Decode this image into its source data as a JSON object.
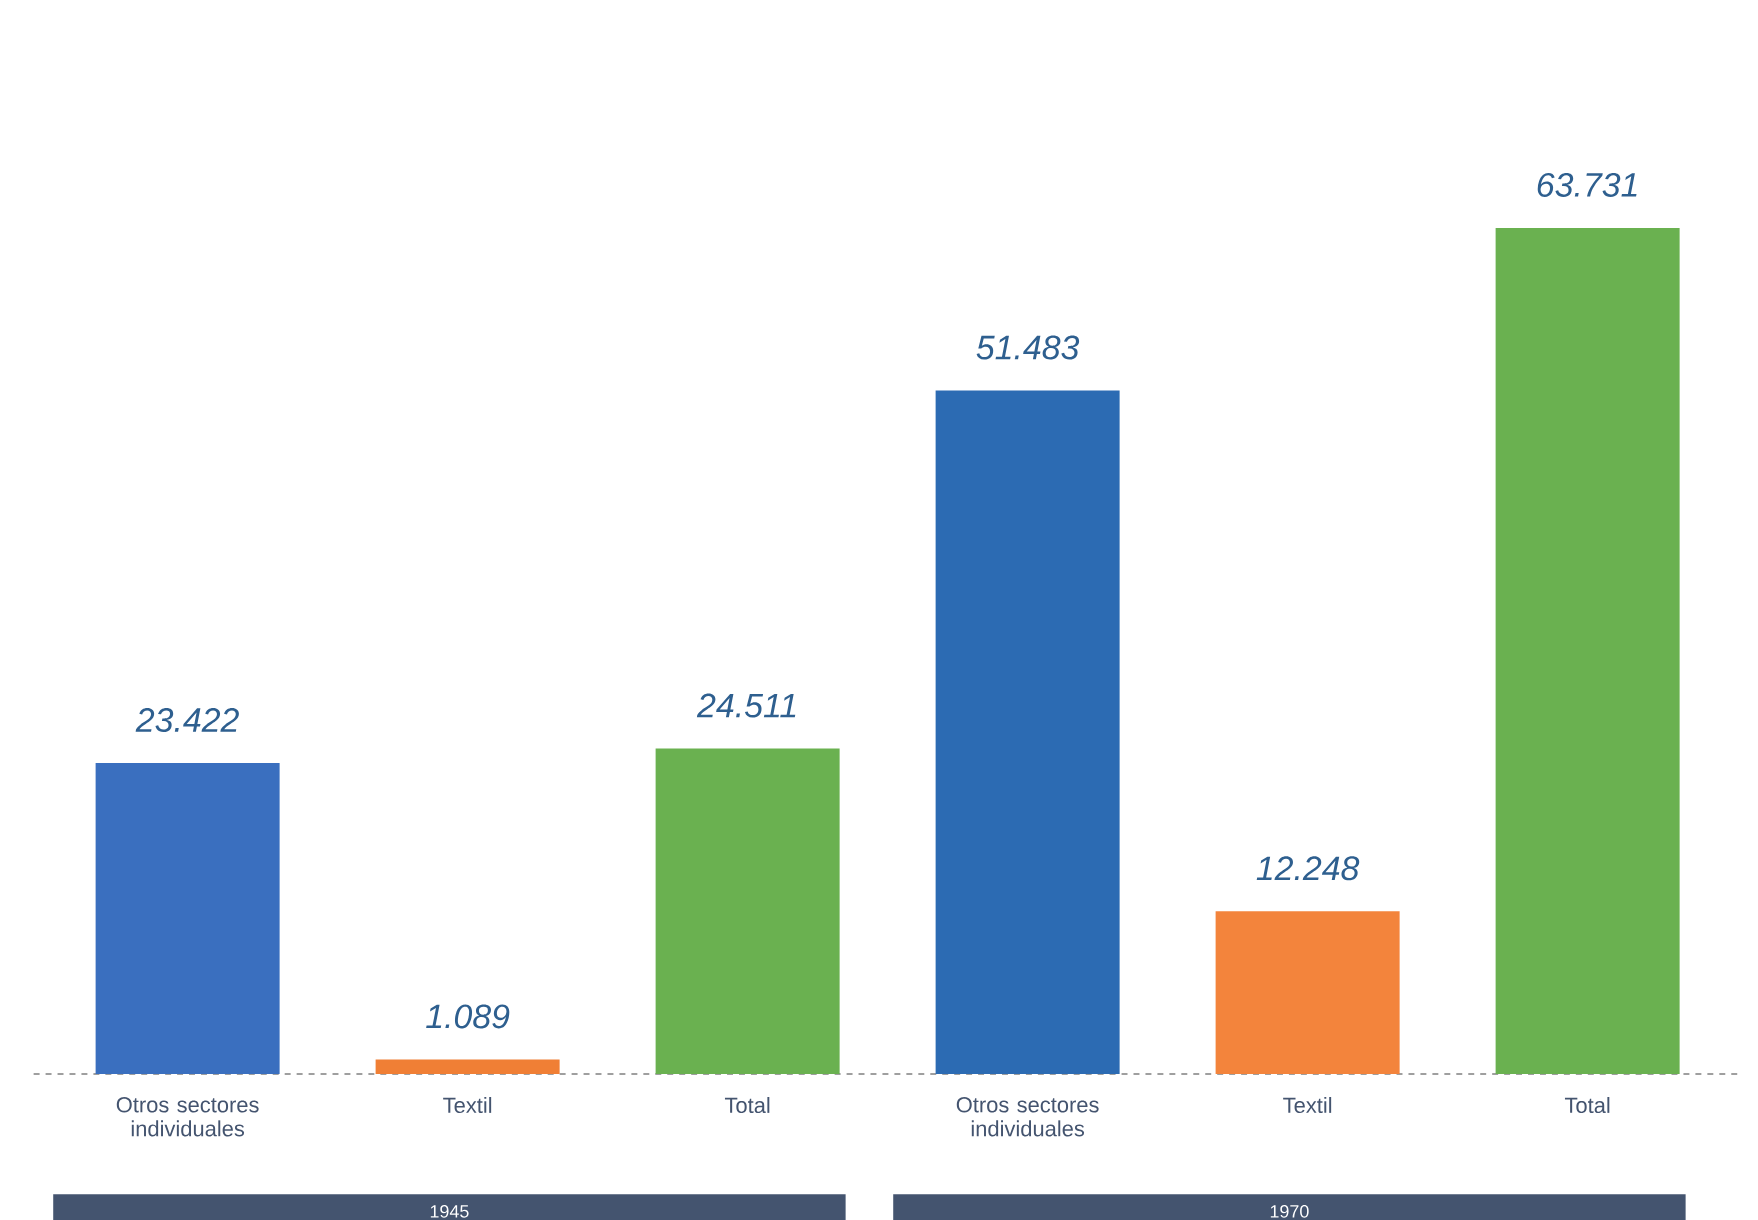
{
  "chart_data": {
    "type": "bar",
    "categories": [
      "Otros sectores individuales",
      "Textil",
      "Total",
      "Otros sectores individuales",
      "Textil",
      "Total"
    ],
    "values": [
      23422,
      1089,
      24511,
      51483,
      12248,
      63731
    ],
    "value_labels": [
      "23.422",
      "1.089",
      "24.511",
      "51.483",
      "12.248",
      "63.731"
    ],
    "colors": [
      "#3a6fbf",
      "#f07f35",
      "#6ab150",
      "#2c6bb3",
      "#f3843c",
      "#6ab150"
    ],
    "annotations": [
      "1945",
      "1970"
    ]
  }
}
